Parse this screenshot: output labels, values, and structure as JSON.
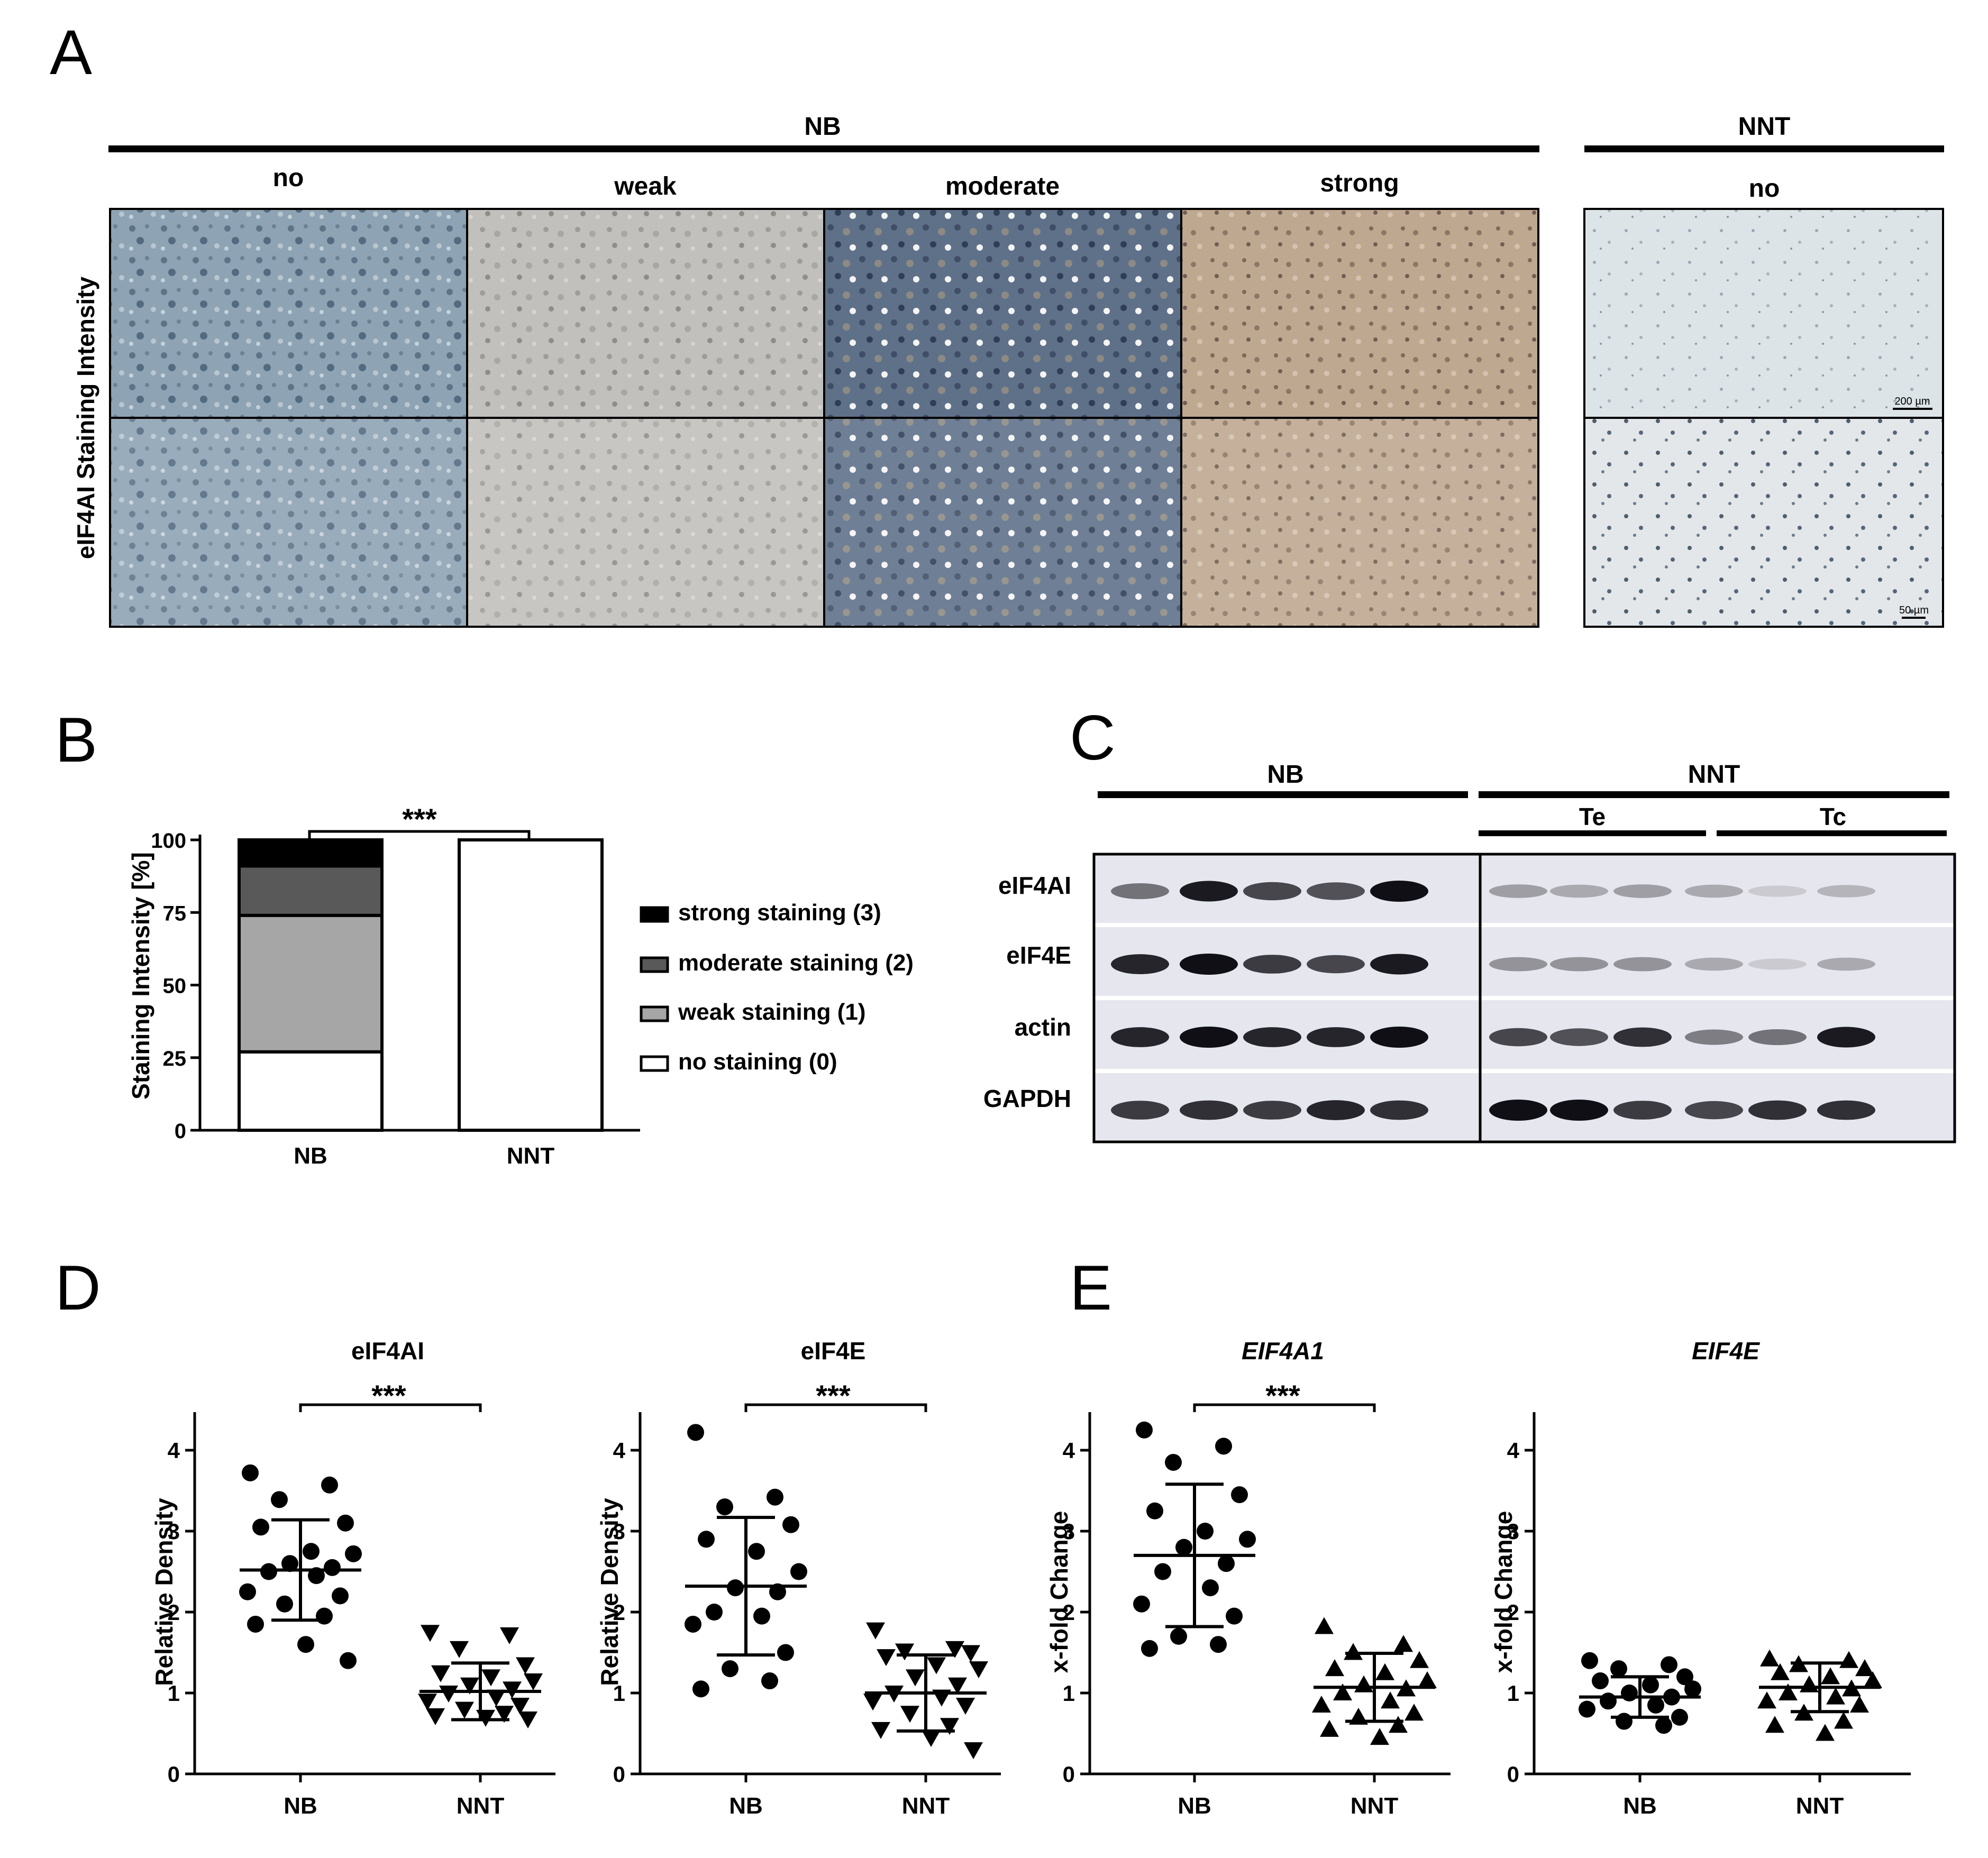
{
  "panel_a": {
    "letter": "A",
    "nb_group": "NB",
    "nnt_group": "NNT",
    "columns": [
      "no",
      "weak",
      "moderate",
      "strong"
    ],
    "nnt_column": "no",
    "ylabel": "eIF4AI Staining Intensity",
    "scale_top": "200 µm",
    "scale_bottom": "50 µm",
    "colors": {
      "no": "#8ea3b3",
      "weak": "#c2c0bc",
      "moderate": "#5f7189",
      "strong": "#bfa890",
      "nnt": "#dce4e8"
    }
  },
  "panel_b": {
    "letter": "B",
    "significance": "***",
    "chart_data": {
      "type": "bar",
      "stacked": true,
      "ylabel": "Staining Intensity [%]",
      "categories": [
        "NB",
        "NNT"
      ],
      "yticks": [
        "0",
        "25",
        "50",
        "75",
        "100"
      ],
      "ylim": [
        0,
        100
      ],
      "series": [
        {
          "name": "no staining (0)",
          "values": [
            27,
            100
          ],
          "color": "#ffffff"
        },
        {
          "name": "weak staining (1)",
          "values": [
            47,
            0
          ],
          "color": "#a6a6a6"
        },
        {
          "name": "moderate staining (2)",
          "values": [
            17,
            0
          ],
          "color": "#595959"
        },
        {
          "name": "strong staining (3)",
          "values": [
            9,
            0
          ],
          "color": "#000000"
        }
      ],
      "legend_order": [
        "strong staining (3)",
        "moderate staining (2)",
        "weak staining (1)",
        "no staining (0)"
      ],
      "legend": "right"
    }
  },
  "panel_c": {
    "letter": "C",
    "nb_group": "NB",
    "nnt_group": "NNT",
    "sub_te": "Te",
    "sub_tc": "Tc",
    "rows": [
      "eIF4AI",
      "eIF4E",
      "actin",
      "GAPDH"
    ],
    "band_intensity": [
      [
        0.55,
        0.95,
        0.75,
        0.7,
        1.0,
        0.35,
        0.3,
        0.35,
        0.3,
        0.15,
        0.25
      ],
      [
        0.9,
        1.0,
        0.8,
        0.75,
        0.95,
        0.4,
        0.4,
        0.4,
        0.3,
        0.15,
        0.3
      ],
      [
        0.9,
        1.0,
        0.9,
        0.9,
        1.0,
        0.75,
        0.7,
        0.85,
        0.5,
        0.55,
        0.95
      ],
      [
        0.8,
        0.85,
        0.8,
        0.9,
        0.85,
        1.0,
        1.0,
        0.8,
        0.75,
        0.85,
        0.85
      ]
    ]
  },
  "panel_d": {
    "letter": "D"
  },
  "panel_e": {
    "letter": "E"
  },
  "chart_data": [
    {
      "type": "scatter",
      "title": "eIF4AI",
      "ylabel": "Relative Density",
      "categories": [
        "NB",
        "NNT"
      ],
      "yticks": [
        "0",
        "1",
        "2",
        "3",
        "4"
      ],
      "ylim": [
        0,
        4.5
      ],
      "significance": "***",
      "series": [
        {
          "name": "NB",
          "marker": "circle",
          "mean": 2.52,
          "sd": 0.62,
          "values": [
            3.72,
            3.57,
            3.39,
            3.1,
            3.05,
            2.75,
            2.72,
            2.6,
            2.55,
            2.5,
            2.45,
            2.25,
            2.2,
            2.1,
            1.95,
            1.85,
            1.6,
            1.4
          ]
        },
        {
          "name": "NNT",
          "marker": "triangle-down",
          "mean": 1.02,
          "sd": 0.35,
          "values": [
            1.75,
            1.72,
            1.55,
            1.35,
            1.25,
            1.2,
            1.15,
            1.1,
            1.05,
            1.0,
            0.95,
            0.9,
            0.85,
            0.8,
            0.75,
            0.72,
            0.7,
            0.68
          ]
        }
      ]
    },
    {
      "type": "scatter",
      "title": "eIF4E",
      "ylabel": "Relative Density",
      "categories": [
        "NB",
        "NNT"
      ],
      "yticks": [
        "0",
        "1",
        "2",
        "3",
        "4"
      ],
      "ylim": [
        0,
        4.5
      ],
      "significance": "***",
      "series": [
        {
          "name": "NB",
          "marker": "circle",
          "mean": 2.32,
          "sd": 0.85,
          "values": [
            4.22,
            3.42,
            3.3,
            3.08,
            2.9,
            2.75,
            2.5,
            2.3,
            2.25,
            2.0,
            1.95,
            1.85,
            1.5,
            1.3,
            1.15,
            1.05
          ]
        },
        {
          "name": "NNT",
          "marker": "triangle-down",
          "mean": 1.0,
          "sd": 0.47,
          "values": [
            1.78,
            1.55,
            1.52,
            1.5,
            1.45,
            1.35,
            1.3,
            1.2,
            1.1,
            1.0,
            0.95,
            0.9,
            0.85,
            0.75,
            0.6,
            0.55,
            0.45,
            0.3
          ]
        }
      ]
    },
    {
      "type": "scatter",
      "title": "EIF4A1",
      "ylabel": "x-fold Change",
      "categories": [
        "NB",
        "NNT"
      ],
      "yticks": [
        "0",
        "1",
        "2",
        "3",
        "4"
      ],
      "ylim": [
        0,
        4.5
      ],
      "significance": "***",
      "series": [
        {
          "name": "NB",
          "marker": "circle",
          "mean": 2.7,
          "sd": 0.88,
          "values": [
            4.25,
            4.05,
            3.85,
            3.45,
            3.25,
            3.0,
            2.9,
            2.8,
            2.6,
            2.5,
            2.3,
            2.1,
            1.95,
            1.7,
            1.6,
            1.55
          ]
        },
        {
          "name": "NNT",
          "marker": "triangle-up",
          "mean": 1.07,
          "sd": 0.42,
          "values": [
            1.82,
            1.6,
            1.5,
            1.4,
            1.3,
            1.25,
            1.15,
            1.1,
            1.05,
            1.0,
            0.9,
            0.85,
            0.75,
            0.7,
            0.6,
            0.55,
            0.45
          ]
        }
      ]
    },
    {
      "type": "scatter",
      "title": "EIF4E",
      "ylabel": "x-fold Change",
      "categories": [
        "NB",
        "NNT"
      ],
      "yticks": [
        "0",
        "1",
        "2",
        "3",
        "4"
      ],
      "ylim": [
        0,
        4.5
      ],
      "significance": "",
      "series": [
        {
          "name": "NB",
          "marker": "circle",
          "mean": 0.95,
          "sd": 0.25,
          "values": [
            1.4,
            1.35,
            1.3,
            1.2,
            1.15,
            1.1,
            1.05,
            1.0,
            0.95,
            0.9,
            0.85,
            0.8,
            0.7,
            0.65,
            0.6
          ]
        },
        {
          "name": "NNT",
          "marker": "triangle-up",
          "mean": 1.07,
          "sd": 0.3,
          "values": [
            1.42,
            1.4,
            1.35,
            1.3,
            1.25,
            1.2,
            1.15,
            1.1,
            1.05,
            1.0,
            0.95,
            0.9,
            0.85,
            0.75,
            0.65,
            0.6,
            0.5
          ]
        }
      ]
    }
  ]
}
